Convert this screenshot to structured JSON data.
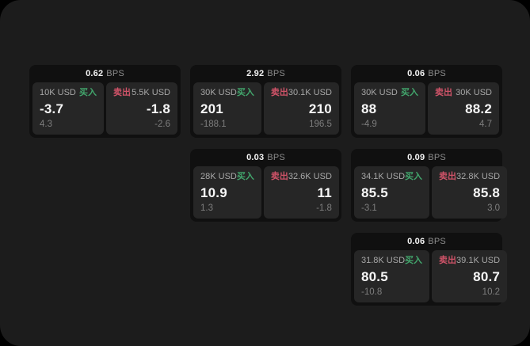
{
  "labels": {
    "bps": "BPS",
    "buy": "买入",
    "sell": "卖出"
  },
  "colors": {
    "outer_bg": "#000000",
    "panel_bg": "#1c1c1c",
    "card_bg": "#101010",
    "tile_bg": "#262626",
    "buy": "#42a56c",
    "sell": "#cf5368",
    "value_text": "#f7f7f7",
    "muted_text": "#a8a8a8",
    "delta_text": "#7e7e7e"
  },
  "cards": [
    {
      "bps": "0.62",
      "buy": {
        "amount": "10K USD",
        "value": "-3.7",
        "delta": "4.3"
      },
      "sell": {
        "amount": "5.5K USD",
        "value": "-1.8",
        "delta": "-2.6"
      }
    },
    {
      "bps": "2.92",
      "buy": {
        "amount": "30K USD",
        "value": "201",
        "delta": "-188.1"
      },
      "sell": {
        "amount": "30.1K USD",
        "value": "210",
        "delta": "196.5"
      }
    },
    {
      "bps": "0.06",
      "buy": {
        "amount": "30K USD",
        "value": "88",
        "delta": "-4.9"
      },
      "sell": {
        "amount": "30K USD",
        "value": "88.2",
        "delta": "4.7"
      }
    },
    {
      "bps": "0.03",
      "buy": {
        "amount": "28K USD",
        "value": "10.9",
        "delta": "1.3"
      },
      "sell": {
        "amount": "32.6K USD",
        "value": "11",
        "delta": "-1.8"
      }
    },
    {
      "bps": "0.09",
      "buy": {
        "amount": "34.1K USD",
        "value": "85.5",
        "delta": "-3.1"
      },
      "sell": {
        "amount": "32.8K USD",
        "value": "85.8",
        "delta": "3.0"
      }
    },
    {
      "bps": "0.06",
      "buy": {
        "amount": "31.8K USD",
        "value": "80.5",
        "delta": "-10.8"
      },
      "sell": {
        "amount": "39.1K USD",
        "value": "80.7",
        "delta": "10.2"
      }
    }
  ]
}
